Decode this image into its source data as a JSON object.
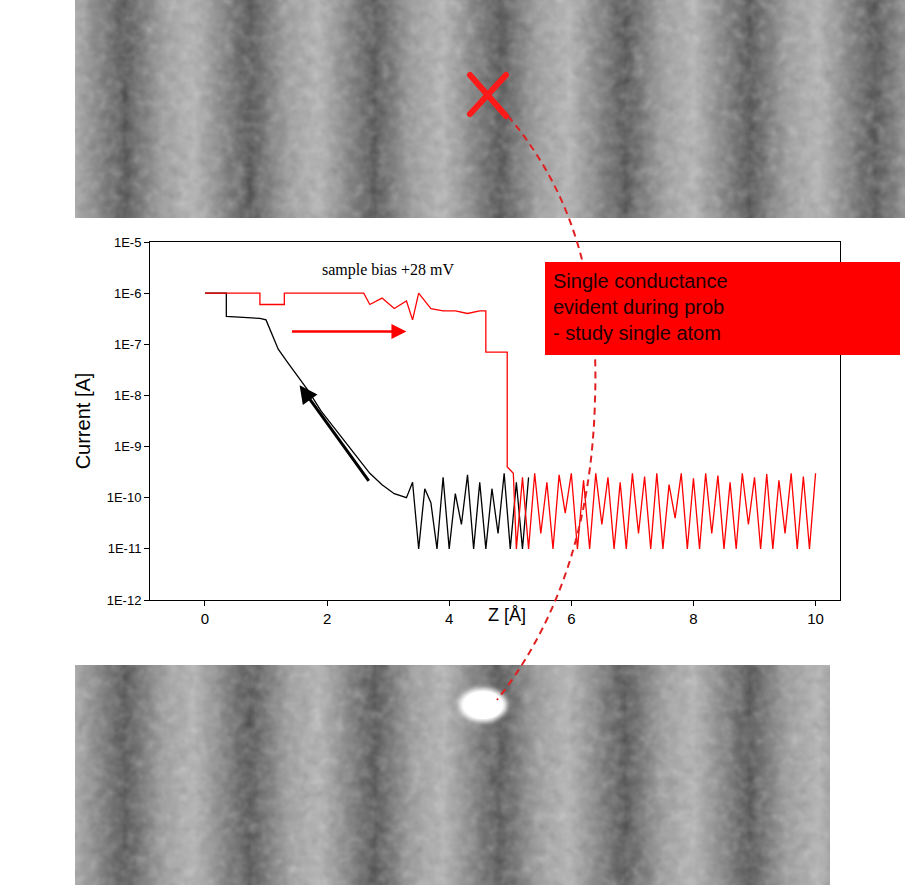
{
  "chart_data": {
    "type": "line",
    "x_label": "Z [Å]",
    "y_label": "Current [A]",
    "log": "y",
    "grid": false,
    "xlim": [
      -0.9,
      10.4
    ],
    "xticks": [
      0,
      2,
      4,
      6,
      8,
      10
    ],
    "ylim": [
      1e-12,
      1e-05
    ],
    "yticks": [
      {
        "value": 1e-12,
        "label": "1E-12"
      },
      {
        "value": 1e-11,
        "label": "1E-11"
      },
      {
        "value": 1e-10,
        "label": "1E-10"
      },
      {
        "value": 1e-09,
        "label": "1E-9"
      },
      {
        "value": 1e-08,
        "label": "1E-8"
      },
      {
        "value": 1e-07,
        "label": "1E-7"
      },
      {
        "value": 1e-06,
        "label": "1E-6"
      },
      {
        "value": 1e-05,
        "label": "1E-5"
      }
    ],
    "annotations": [
      "sample bias +28 mV"
    ],
    "series": [
      {
        "color": "#000000",
        "x": [
          0,
          0.35,
          0.35,
          0.9,
          1.0,
          1.1,
          1.2,
          1.35,
          1.5,
          1.7,
          1.9,
          2.1,
          2.3,
          2.5,
          2.7,
          2.9,
          3.1,
          3.3,
          3.4,
          3.5,
          3.6,
          3.7,
          3.8,
          3.9,
          4.0,
          4.1,
          4.2,
          4.3,
          4.4,
          4.5,
          4.6,
          4.7,
          4.8,
          4.9,
          5.0,
          5.1,
          5.2,
          5.3
        ],
        "values": [
          1e-06,
          1e-06,
          3.5e-07,
          3.2e-07,
          3e-07,
          1.6e-07,
          8e-08,
          4.5e-08,
          2.5e-08,
          1.2e-08,
          5e-09,
          2.5e-09,
          1.2e-09,
          6e-10,
          3e-10,
          1.8e-10,
          1.2e-10,
          1e-10,
          2e-10,
          1e-11,
          1.5e-10,
          8e-11,
          1e-11,
          2.5e-10,
          1e-11,
          1.2e-10,
          3e-11,
          2.8e-10,
          1e-11,
          2e-10,
          1e-11,
          1.5e-10,
          2e-11,
          3e-10,
          1e-11,
          2e-10,
          1e-11,
          2.5e-10
        ]
      },
      {
        "color": "#ff0000",
        "x": [
          0,
          0.9,
          0.9,
          1.3,
          1.3,
          2.6,
          2.7,
          2.9,
          3.1,
          3.3,
          3.4,
          3.5,
          3.7,
          3.9,
          4.1,
          4.3,
          4.5,
          4.6,
          4.6,
          4.95,
          4.95,
          5.05,
          5.1,
          5.2,
          5.3,
          5.4,
          5.5,
          5.6,
          5.7,
          5.8,
          5.9,
          6.0,
          6.1,
          6.2,
          6.3,
          6.4,
          6.5,
          6.6,
          6.7,
          6.8,
          6.9,
          7.0,
          7.1,
          7.2,
          7.3,
          7.4,
          7.5,
          7.6,
          7.7,
          7.8,
          7.9,
          8.0,
          8.1,
          8.2,
          8.3,
          8.4,
          8.5,
          8.6,
          8.7,
          8.8,
          8.9,
          9.0,
          9.1,
          9.2,
          9.3,
          9.4,
          9.5,
          9.6,
          9.7,
          9.8,
          9.9,
          10.0
        ],
        "values": [
          1e-06,
          1e-06,
          6e-07,
          6e-07,
          1e-06,
          1e-06,
          6e-07,
          8e-07,
          5e-07,
          7e-07,
          3e-07,
          1e-06,
          5e-07,
          4.5e-07,
          4.5e-07,
          4e-07,
          4.5e-07,
          4.5e-07,
          7e-08,
          7e-08,
          4e-10,
          3e-10,
          1e-11,
          2.5e-10,
          1e-11,
          3e-10,
          2e-11,
          2e-10,
          1e-11,
          2.8e-10,
          5e-11,
          3e-10,
          1e-11,
          2.2e-10,
          1e-11,
          3e-10,
          3e-11,
          2.5e-10,
          1e-11,
          2e-10,
          1e-11,
          3e-10,
          2e-11,
          2.6e-10,
          1e-11,
          3e-10,
          1e-11,
          1.8e-10,
          4e-11,
          3e-10,
          1e-11,
          2.4e-10,
          1e-11,
          3e-10,
          2e-11,
          2.7e-10,
          1e-11,
          2e-10,
          1e-11,
          3e-10,
          3e-11,
          2.5e-10,
          1e-11,
          2.9e-10,
          1e-11,
          2.2e-10,
          2e-11,
          3e-10,
          1e-11,
          2.6e-10,
          1e-11,
          3e-10
        ]
      }
    ]
  },
  "callout": [
    "Single conductance",
    "evident during prob",
    "- study single atom"
  ]
}
